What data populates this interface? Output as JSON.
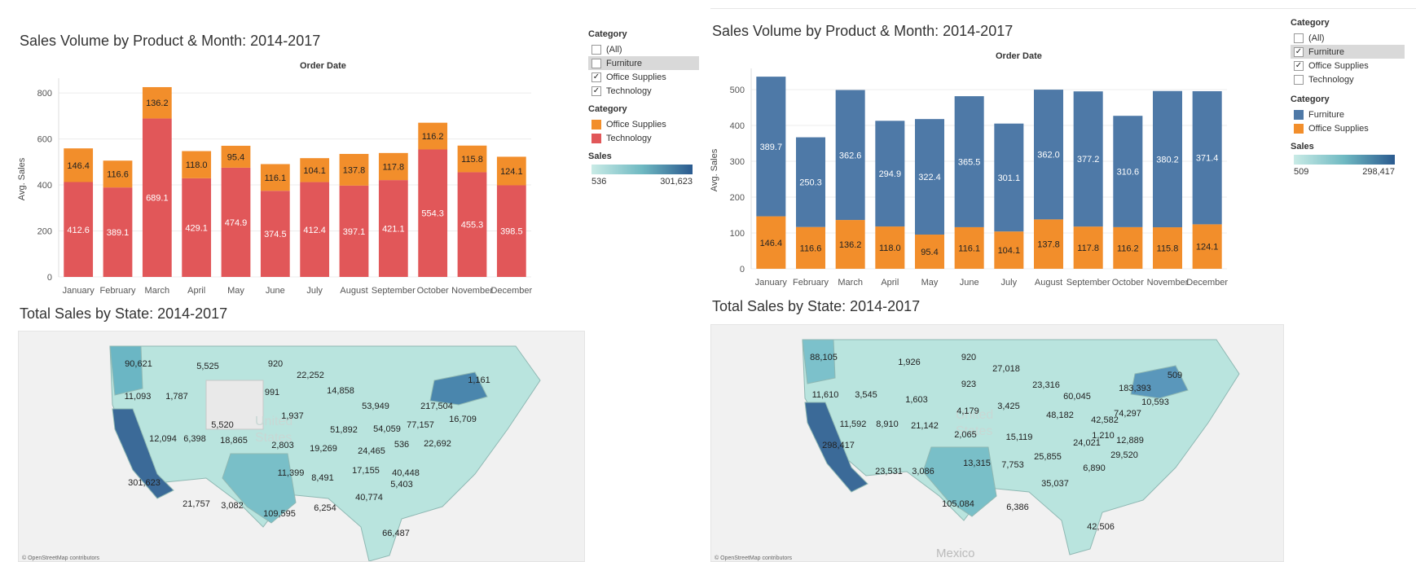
{
  "left": {
    "bar_title": "Sales Volume by Product & Month: 2014-2017",
    "header": "Order Date",
    "ylabel": "Avg. Sales",
    "filter": {
      "title": "Category",
      "items": [
        {
          "label": "(All)",
          "checked": false,
          "highlight": false
        },
        {
          "label": "Furniture",
          "checked": false,
          "highlight": true
        },
        {
          "label": "Office Supplies",
          "checked": true,
          "highlight": false
        },
        {
          "label": "Technology",
          "checked": true,
          "highlight": false
        }
      ]
    },
    "color_legend": {
      "title": "Category",
      "items": [
        {
          "label": "Office Supplies",
          "color": "#f28e2b"
        },
        {
          "label": "Technology",
          "color": "#e15759"
        }
      ]
    },
    "sales_legend": {
      "title": "Sales",
      "min": "536",
      "max": "301,623"
    },
    "map_title": "Total Sales by State: 2014-2017",
    "map_credit": "© OpenStreetMap contributors",
    "map_watermark": "United States"
  },
  "right": {
    "bar_title": "Sales Volume by Product & Month: 2014-2017",
    "header": "Order Date",
    "ylabel": "Avg. Sales",
    "filter": {
      "title": "Category",
      "items": [
        {
          "label": "(All)",
          "checked": false,
          "highlight": false
        },
        {
          "label": "Furniture",
          "checked": true,
          "highlight": true
        },
        {
          "label": "Office Supplies",
          "checked": true,
          "highlight": false
        },
        {
          "label": "Technology",
          "checked": false,
          "highlight": false
        }
      ]
    },
    "color_legend": {
      "title": "Category",
      "items": [
        {
          "label": "Furniture",
          "color": "#4e79a7"
        },
        {
          "label": "Office Supplies",
          "color": "#f28e2b"
        }
      ]
    },
    "sales_legend": {
      "title": "Sales",
      "min": "509",
      "max": "298,417"
    },
    "map_title": "Total Sales by State: 2014-2017",
    "map_credit": "© OpenStreetMap contributors",
    "map_watermark": "United States",
    "map_country_label": "Mexico"
  },
  "chart_data": [
    {
      "type": "bar",
      "stacked": true,
      "title": "Sales Volume by Product & Month: 2014-2017",
      "xlabel": "Order Date",
      "ylabel": "Avg. Sales",
      "ylim": [
        0,
        850
      ],
      "yticks": [
        0,
        200,
        400,
        600,
        800
      ],
      "categories": [
        "January",
        "February",
        "March",
        "April",
        "May",
        "June",
        "July",
        "August",
        "September",
        "October",
        "November",
        "December"
      ],
      "series": [
        {
          "name": "Technology",
          "color": "#e15759",
          "values": [
            412.6,
            389.1,
            689.1,
            429.1,
            474.9,
            374.5,
            412.4,
            397.1,
            421.1,
            554.3,
            455.3,
            398.5
          ]
        },
        {
          "name": "Office Supplies",
          "color": "#f28e2b",
          "values": [
            146.4,
            116.6,
            136.2,
            118.0,
            95.4,
            116.1,
            104.1,
            137.8,
            117.8,
            116.2,
            115.8,
            124.1
          ]
        }
      ],
      "data_labels": {
        "Technology": [
          "412.6",
          "389.1",
          "689.1",
          "429.1",
          "474.9",
          "374.5",
          "412.4",
          "397.1",
          "421.1",
          "554.3",
          "455.3",
          "398.5"
        ],
        "Office Supplies": [
          "146.4",
          "116.6",
          "136.2",
          "118.0",
          "95.4",
          "116.1",
          "104.1",
          "137.8",
          "117.8",
          "116.2",
          "115.8",
          "124.1"
        ]
      },
      "grid": true
    },
    {
      "type": "bar",
      "stacked": true,
      "title": "Sales Volume by Product & Month: 2014-2017",
      "xlabel": "Order Date",
      "ylabel": "Avg. Sales",
      "ylim": [
        0,
        550
      ],
      "yticks": [
        0,
        100,
        200,
        300,
        400,
        500
      ],
      "categories": [
        "January",
        "February",
        "March",
        "April",
        "May",
        "June",
        "July",
        "August",
        "September",
        "October",
        "November",
        "December"
      ],
      "series": [
        {
          "name": "Office Supplies",
          "color": "#f28e2b",
          "values": [
            146.4,
            116.6,
            136.2,
            118.0,
            95.4,
            116.1,
            104.1,
            137.8,
            117.8,
            116.2,
            115.8,
            124.1
          ]
        },
        {
          "name": "Furniture",
          "color": "#4e79a7",
          "values": [
            389.7,
            250.3,
            362.6,
            294.9,
            322.4,
            365.5,
            301.1,
            362.0,
            377.2,
            310.6,
            380.2,
            371.4
          ]
        }
      ],
      "data_labels": {
        "Office Supplies": [
          "146.4",
          "116.6",
          "136.2",
          "118.0",
          "95.4",
          "116.1",
          "104.1",
          "137.8",
          "117.8",
          "116.2",
          "115.8",
          "124.1"
        ],
        "Furniture": [
          "389.7",
          "250.3",
          "362.6",
          "294.9",
          "322.4",
          "365.5",
          "301.1",
          "362.0",
          "377.2",
          "310.6",
          "380.2",
          "371.4"
        ]
      },
      "grid": true
    }
  ],
  "map_data": {
    "left": {
      "title": "Total Sales by State: 2014-2017",
      "labels": [
        {
          "state": "WA",
          "value": "90,621"
        },
        {
          "state": "OR",
          "value": "11,093"
        },
        {
          "state": "CA",
          "value": "301,623"
        },
        {
          "state": "ID",
          "value": "1,787"
        },
        {
          "state": "NV",
          "value": "12,094"
        },
        {
          "state": "MT",
          "value": "5,525"
        },
        {
          "state": "WY",
          "value": "5,520"
        },
        {
          "state": "UT",
          "value": "6,398"
        },
        {
          "state": "AZ",
          "value": "21,757"
        },
        {
          "state": "CO",
          "value": "18,865"
        },
        {
          "state": "NM",
          "value": "3,082"
        },
        {
          "state": "ND",
          "value": "920"
        },
        {
          "state": "SD",
          "value": "991"
        },
        {
          "state": "NE",
          "value": "1,937"
        },
        {
          "state": "KS",
          "value": "2,803"
        },
        {
          "state": "OK",
          "value": "11,399"
        },
        {
          "state": "TX",
          "value": "109,595"
        },
        {
          "state": "MN",
          "value": "22,252"
        },
        {
          "state": "IA",
          "value": "51,892"
        },
        {
          "state": "MO",
          "value": "19,269"
        },
        {
          "state": "AR",
          "value": "8,491"
        },
        {
          "state": "LA",
          "value": "6,254"
        },
        {
          "state": "WI",
          "value": "14,858"
        },
        {
          "state": "IL",
          "value": "24,465"
        },
        {
          "state": "MI",
          "value": "53,949"
        },
        {
          "state": "IN",
          "value": "54,059"
        },
        {
          "state": "OH",
          "value": "77,157"
        },
        {
          "state": "KY",
          "value": "536"
        },
        {
          "state": "TN",
          "value": "17,155"
        },
        {
          "state": "MS",
          "value": "40,448"
        },
        {
          "state": "AL",
          "value": "40,774"
        },
        {
          "state": "GA",
          "value": "5,403"
        },
        {
          "state": "FL",
          "value": "66,487"
        },
        {
          "state": "PA",
          "value": "22,692"
        },
        {
          "state": "NY",
          "value": "217,504"
        },
        {
          "state": "NJ",
          "value": "16,709"
        },
        {
          "state": "ME",
          "value": "1,161"
        }
      ]
    },
    "right": {
      "title": "Total Sales by State: 2014-2017",
      "labels": [
        {
          "state": "WA",
          "value": "88,105"
        },
        {
          "state": "OR",
          "value": "11,610"
        },
        {
          "state": "CA",
          "value": "298,417"
        },
        {
          "state": "ID",
          "value": "3,545"
        },
        {
          "state": "NV",
          "value": "11,592"
        },
        {
          "state": "MT",
          "value": "1,926"
        },
        {
          "state": "WY",
          "value": "1,603"
        },
        {
          "state": "UT",
          "value": "8,910"
        },
        {
          "state": "AZ",
          "value": "23,531"
        },
        {
          "state": "CO",
          "value": "21,142"
        },
        {
          "state": "NM",
          "value": "3,086"
        },
        {
          "state": "ND",
          "value": "920"
        },
        {
          "state": "SD",
          "value": "923"
        },
        {
          "state": "NE",
          "value": "4,179"
        },
        {
          "state": "KS",
          "value": "2,065"
        },
        {
          "state": "OK",
          "value": "13,315"
        },
        {
          "state": "TX",
          "value": "105,084"
        },
        {
          "state": "MN",
          "value": "27,018"
        },
        {
          "state": "WI",
          "value": "23,316"
        },
        {
          "state": "IA",
          "value": "3,425"
        },
        {
          "state": "MO",
          "value": "15,119"
        },
        {
          "state": "AR",
          "value": "7,753"
        },
        {
          "state": "LA",
          "value": "6,386"
        },
        {
          "state": "IL",
          "value": "48,182"
        },
        {
          "state": "MI",
          "value": "60,045"
        },
        {
          "state": "IN",
          "value": "24,021"
        },
        {
          "state": "OH",
          "value": "42,582"
        },
        {
          "state": "WV",
          "value": "1,210"
        },
        {
          "state": "TN",
          "value": "25,855"
        },
        {
          "state": "AL",
          "value": "35,037"
        },
        {
          "state": "GA",
          "value": "6,890"
        },
        {
          "state": "FL",
          "value": "42,506"
        },
        {
          "state": "NC",
          "value": "29,520"
        },
        {
          "state": "VA",
          "value": "12,889"
        },
        {
          "state": "PA",
          "value": "74,297"
        },
        {
          "state": "NY",
          "value": "183,393"
        },
        {
          "state": "NJ",
          "value": "10,593"
        },
        {
          "state": "VT",
          "value": "509"
        }
      ]
    }
  }
}
